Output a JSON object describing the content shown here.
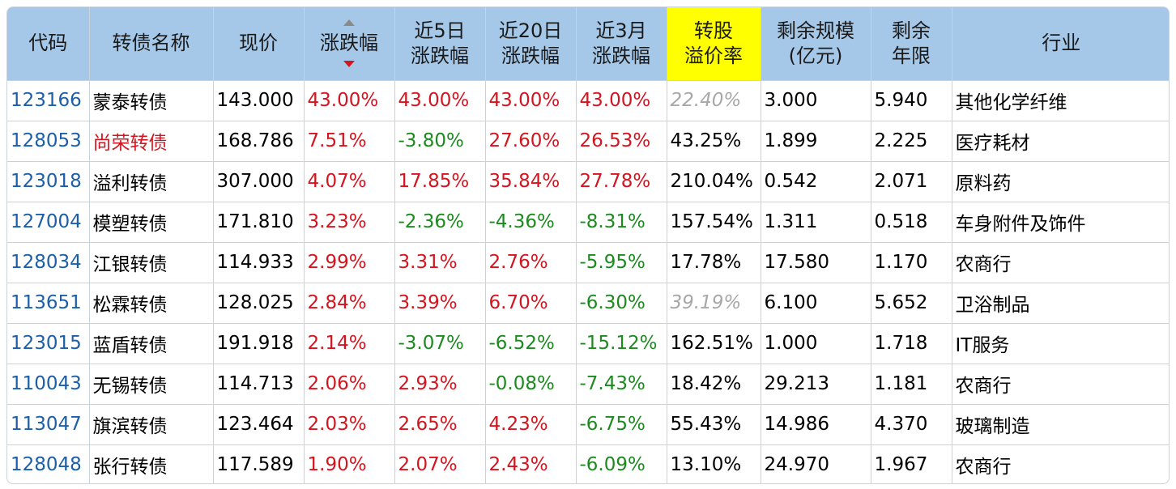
{
  "headers": {
    "code": "代码",
    "name": "转债名称",
    "price": "现价",
    "change": "涨跌幅",
    "chg5d_l1": "近5日",
    "chg5d_l2": "涨跌幅",
    "chg20d_l1": "近20日",
    "chg20d_l2": "涨跌幅",
    "chg3m_l1": "近3月",
    "chg3m_l2": "涨跌幅",
    "premium_l1": "转股",
    "premium_l2": "溢价率",
    "scale_l1": "剩余规模",
    "scale_l2": "(亿元)",
    "years_l1": "剩余",
    "years_l2": "年限",
    "industry": "行业"
  },
  "colors": {
    "header_bg": "#a6c8e8",
    "highlight": "#ffff00",
    "up": "#d4141e",
    "down": "#1c8a1f",
    "code": "#1c5fa8",
    "muted": "#a8a8a8"
  },
  "rows": [
    {
      "code": "123166",
      "name": "蒙泰转债",
      "price": "143.000",
      "change": "43.00%",
      "chg5d": "43.00%",
      "chg20d": "43.00%",
      "chg3m": "43.00%",
      "premium": "22.40%",
      "scale": "3.000",
      "years": "5.940",
      "industry": "其他化学纤维"
    },
    {
      "code": "128053",
      "name": "尚荣转债",
      "price": "168.786",
      "change": "7.51%",
      "chg5d": "-3.80%",
      "chg20d": "27.60%",
      "chg3m": "26.53%",
      "premium": "43.25%",
      "scale": "1.899",
      "years": "2.225",
      "industry": "医疗耗材"
    },
    {
      "code": "123018",
      "name": "溢利转债",
      "price": "307.000",
      "change": "4.07%",
      "chg5d": "17.85%",
      "chg20d": "35.84%",
      "chg3m": "27.78%",
      "premium": "210.04%",
      "scale": "0.542",
      "years": "2.071",
      "industry": "原料药"
    },
    {
      "code": "127004",
      "name": "模塑转债",
      "price": "171.810",
      "change": "3.23%",
      "chg5d": "-2.36%",
      "chg20d": "-4.36%",
      "chg3m": "-8.31%",
      "premium": "157.54%",
      "scale": "1.311",
      "years": "0.518",
      "industry": "车身附件及饰件"
    },
    {
      "code": "128034",
      "name": "江银转债",
      "price": "114.933",
      "change": "2.99%",
      "chg5d": "3.31%",
      "chg20d": "2.76%",
      "chg3m": "-5.95%",
      "premium": "17.78%",
      "scale": "17.580",
      "years": "1.170",
      "industry": "农商行"
    },
    {
      "code": "113651",
      "name": "松霖转债",
      "price": "128.025",
      "change": "2.84%",
      "chg5d": "3.39%",
      "chg20d": "6.70%",
      "chg3m": "-6.30%",
      "premium": "39.19%",
      "scale": "6.100",
      "years": "5.652",
      "industry": "卫浴制品"
    },
    {
      "code": "123015",
      "name": "蓝盾转债",
      "price": "191.918",
      "change": "2.14%",
      "chg5d": "-3.07%",
      "chg20d": "-6.52%",
      "chg3m": "-15.12%",
      "premium": "162.51%",
      "scale": "1.000",
      "years": "1.718",
      "industry": "IT服务"
    },
    {
      "code": "110043",
      "name": "无锡转债",
      "price": "114.713",
      "change": "2.06%",
      "chg5d": "2.93%",
      "chg20d": "-0.08%",
      "chg3m": "-7.43%",
      "premium": "18.42%",
      "scale": "29.213",
      "years": "1.181",
      "industry": "农商行"
    },
    {
      "code": "113047",
      "name": "旗滨转债",
      "price": "123.464",
      "change": "2.03%",
      "chg5d": "2.65%",
      "chg20d": "4.23%",
      "chg3m": "-6.75%",
      "premium": "55.43%",
      "scale": "14.986",
      "years": "4.370",
      "industry": "玻璃制造"
    },
    {
      "code": "128048",
      "name": "张行转债",
      "price": "117.589",
      "change": "1.90%",
      "chg5d": "2.07%",
      "chg20d": "2.43%",
      "chg3m": "-6.09%",
      "premium": "13.10%",
      "scale": "24.970",
      "years": "1.967",
      "industry": "农商行"
    }
  ]
}
